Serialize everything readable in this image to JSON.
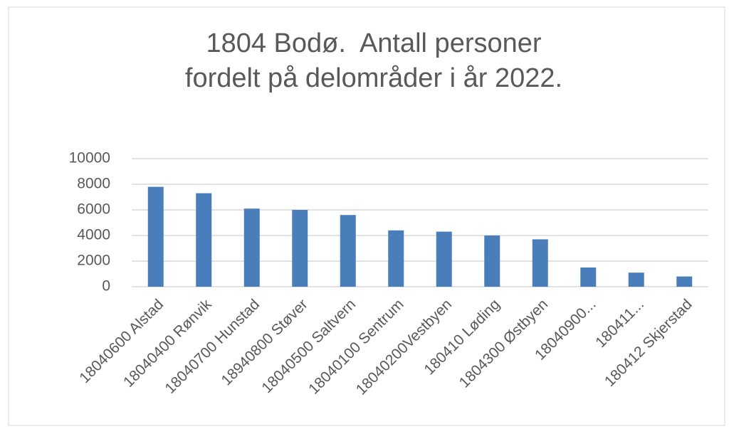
{
  "chart_data": {
    "type": "bar",
    "title": [
      "1804 Bodø.  Antall personer",
      "fordelt på delområder i år 2022."
    ],
    "categories": [
      "18040600 Alstad",
      "18040400 Rønvik",
      "18040700 Hunstad",
      "18940800 Støver",
      "18040500 Saltvern",
      "18040100 Sentrum",
      "18040200Vestbyen",
      "180410 Løding",
      "1804300 Østbyen",
      "18040900...",
      "180411...",
      "180412 Skjerstad"
    ],
    "values": [
      7800,
      7300,
      6100,
      6000,
      5600,
      4400,
      4300,
      4000,
      3700,
      1500,
      1100,
      800
    ],
    "color": "#4a7ebb",
    "ylim": [
      0,
      10000
    ],
    "yticks": [
      0,
      2000,
      4000,
      6000,
      8000,
      10000
    ],
    "grid": true
  }
}
